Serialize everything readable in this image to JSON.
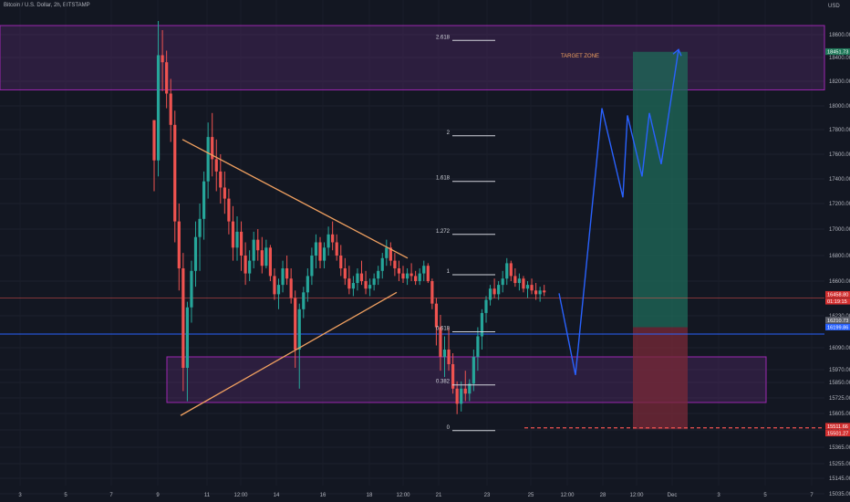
{
  "header": {
    "symbol_line": "Bitcoin / U.S. Dollar, 2h, BITSTAMP",
    "currency": "USD"
  },
  "chart_data": {
    "type": "candlestick",
    "y_axis": {
      "ticks": [
        18600,
        18400,
        18200,
        18000,
        17800,
        17600,
        17400,
        17200,
        17000,
        16800,
        16600,
        16230,
        16090,
        15970,
        15850,
        15725,
        15605,
        15485,
        15365,
        15255,
        15145,
        15035
      ],
      "tick_labels": [
        "18600.00",
        "18400.00",
        "18200.00",
        "18000.00",
        "17800.00",
        "17600.00",
        "17400.00",
        "17200.00",
        "17000.00",
        "16800.00",
        "16600.00",
        "16230.00",
        "16090.00",
        "15970.00",
        "15850.00",
        "15725.00",
        "15605.00",
        "15485.00",
        "15365.00",
        "15255.00",
        "15145.00",
        "15035.00"
      ]
    },
    "x_axis": {
      "ticks": [
        "3",
        "5",
        "7",
        "9",
        "11",
        "12:00",
        "14",
        "16",
        "18",
        "12:00",
        "21",
        "23",
        "25",
        "12:00",
        "28",
        "12:00",
        "Dec",
        "3",
        "5",
        "7"
      ]
    },
    "candles": [
      [
        17880,
        17880,
        17300,
        17550
      ],
      [
        17550,
        18720,
        17420,
        18420
      ],
      [
        18420,
        18640,
        18120,
        18360
      ],
      [
        18360,
        18460,
        17980,
        18100
      ],
      [
        18100,
        18220,
        17700,
        17840
      ],
      [
        17840,
        17960,
        16900,
        17060
      ],
      [
        17060,
        17200,
        16500,
        16700
      ],
      [
        16700,
        16820,
        15780,
        15980
      ],
      [
        15980,
        16380,
        15700,
        16320
      ],
      [
        16320,
        16760,
        16200,
        16680
      ],
      [
        16680,
        17060,
        16540,
        16940
      ],
      [
        16940,
        17200,
        16680,
        17080
      ],
      [
        17080,
        17460,
        16920,
        17380
      ],
      [
        17380,
        17860,
        17240,
        17740
      ],
      [
        17740,
        17940,
        17420,
        17560
      ],
      [
        17560,
        17720,
        17300,
        17460
      ],
      [
        17460,
        17600,
        17200,
        17330
      ],
      [
        17330,
        17460,
        17120,
        17240
      ],
      [
        17240,
        17320,
        16960,
        17060
      ],
      [
        17060,
        17180,
        16760,
        16860
      ],
      [
        16860,
        17100,
        16760,
        16980
      ],
      [
        16980,
        17060,
        16680,
        16800
      ],
      [
        16800,
        16900,
        16560,
        16660
      ],
      [
        16660,
        16840,
        16600,
        16760
      ],
      [
        16760,
        16980,
        16700,
        16920
      ],
      [
        16920,
        17000,
        16760,
        16840
      ],
      [
        16840,
        16940,
        16660,
        16720
      ],
      [
        16720,
        16920,
        16700,
        16860
      ],
      [
        16860,
        16880,
        16600,
        16640
      ],
      [
        16640,
        16700,
        16400,
        16460
      ],
      [
        16460,
        16620,
        16300,
        16560
      ],
      [
        16560,
        16760,
        16480,
        16700
      ],
      [
        16700,
        16800,
        16560,
        16620
      ],
      [
        16620,
        16700,
        16360,
        16420
      ],
      [
        16420,
        16500,
        15980,
        16080
      ],
      [
        16080,
        16360,
        15800,
        16300
      ],
      [
        16300,
        16540,
        16220,
        16480
      ],
      [
        16480,
        16700,
        16380,
        16640
      ],
      [
        16640,
        16860,
        16560,
        16800
      ],
      [
        16800,
        16960,
        16700,
        16900
      ],
      [
        16900,
        16940,
        16700,
        16760
      ],
      [
        16760,
        16900,
        16700,
        16860
      ],
      [
        16860,
        17020,
        16800,
        16960
      ],
      [
        16960,
        17060,
        16840,
        16900
      ],
      [
        16900,
        16960,
        16760,
        16800
      ],
      [
        16800,
        16880,
        16640,
        16700
      ],
      [
        16700,
        16780,
        16560,
        16620
      ],
      [
        16620,
        16720,
        16460,
        16520
      ],
      [
        16520,
        16640,
        16440,
        16580
      ],
      [
        16580,
        16700,
        16500,
        16660
      ],
      [
        16660,
        16760,
        16560,
        16600
      ],
      [
        16600,
        16680,
        16460,
        16520
      ],
      [
        16520,
        16620,
        16440,
        16560
      ],
      [
        16560,
        16660,
        16500,
        16620
      ],
      [
        16620,
        16720,
        16560,
        16680
      ],
      [
        16680,
        16820,
        16620,
        16780
      ],
      [
        16780,
        16920,
        16720,
        16860
      ],
      [
        16860,
        16900,
        16720,
        16760
      ],
      [
        16760,
        16820,
        16640,
        16700
      ],
      [
        16700,
        16760,
        16600,
        16660
      ],
      [
        16660,
        16720,
        16580,
        16620
      ],
      [
        16620,
        16700,
        16560,
        16660
      ],
      [
        16660,
        16740,
        16600,
        16640
      ],
      [
        16640,
        16680,
        16560,
        16600
      ],
      [
        16600,
        16700,
        16560,
        16660
      ],
      [
        16660,
        16760,
        16600,
        16720
      ],
      [
        16720,
        16740,
        16580,
        16600
      ],
      [
        16600,
        16620,
        16300,
        16360
      ],
      [
        16360,
        16420,
        16100,
        16180
      ],
      [
        16180,
        16240,
        15960,
        16040
      ],
      [
        16040,
        16140,
        15900,
        16080
      ],
      [
        16080,
        16180,
        15960,
        16000
      ],
      [
        16000,
        16060,
        15760,
        15800
      ],
      [
        15800,
        15860,
        15600,
        15680
      ],
      [
        15680,
        15860,
        15620,
        15800
      ],
      [
        15800,
        15960,
        15700,
        15760
      ],
      [
        15760,
        15880,
        15700,
        15840
      ],
      [
        15840,
        16080,
        15780,
        16040
      ],
      [
        16040,
        16180,
        15960,
        16140
      ],
      [
        16140,
        16300,
        16080,
        16260
      ],
      [
        16260,
        16440,
        16200,
        16400
      ],
      [
        16400,
        16560,
        16340,
        16520
      ],
      [
        16520,
        16620,
        16420,
        16460
      ],
      [
        16460,
        16600,
        16400,
        16560
      ],
      [
        16560,
        16680,
        16480,
        16620
      ],
      [
        16620,
        16780,
        16560,
        16740
      ],
      [
        16740,
        16760,
        16600,
        16640
      ],
      [
        16640,
        16700,
        16540,
        16580
      ],
      [
        16580,
        16660,
        16500,
        16620
      ],
      [
        16620,
        16640,
        16480,
        16520
      ],
      [
        16520,
        16600,
        16420,
        16560
      ],
      [
        16560,
        16620,
        16460,
        16500
      ],
      [
        16500,
        16580,
        16400,
        16460
      ],
      [
        16460,
        16540,
        16380,
        16500
      ],
      [
        16500,
        16560,
        16440,
        16480
      ]
    ],
    "fib_levels": [
      {
        "label": "2.618",
        "price": 18550
      },
      {
        "label": "2",
        "price": 17750
      },
      {
        "label": "1.618",
        "price": 17380
      },
      {
        "label": "1.272",
        "price": 16960
      },
      {
        "label": "1",
        "price": 16650
      },
      {
        "label": "0.618",
        "price": 16160
      },
      {
        "label": "0.382",
        "price": 15830
      },
      {
        "label": "0",
        "price": 15480
      }
    ],
    "zones": [
      {
        "role": "resistance",
        "top": 18680,
        "bottom": 18130
      },
      {
        "role": "support",
        "top": 16040,
        "bottom": 15690
      }
    ],
    "triangle": {
      "upper": [
        [
          17720,
          16780
        ]
      ],
      "lower": [
        [
          15590,
          16480
        ]
      ]
    },
    "projection_prices": [
      16470,
      15920,
      17980,
      17250,
      17920,
      17420,
      17940,
      17520,
      18470
    ],
    "position": {
      "entry": 16180,
      "target": 18450,
      "stop": 15490
    },
    "target_label": "TARGET ZONE",
    "horizontal_lines": {
      "current": 16420,
      "blue": 16150,
      "dashed_red": 15500
    },
    "price_tags": [
      {
        "text": "18451.73",
        "price": 18451.73,
        "kind": "green"
      },
      {
        "text": "16458.80",
        "price": 16458.8,
        "kind": "red"
      },
      {
        "text": "01:19:15",
        "price": 16400,
        "kind": "red"
      },
      {
        "text": "16210.73",
        "price": 16210.73,
        "kind": "grey"
      },
      {
        "text": "16199.86",
        "price": 16199.86,
        "kind": "blue"
      },
      {
        "text": "15511.66",
        "price": 15511.66,
        "kind": "red"
      },
      {
        "text": "15501.27",
        "price": 15501.27,
        "kind": "red"
      }
    ],
    "colors": {
      "background": "#131722",
      "bull": "#26a69a",
      "bear": "#ef5350",
      "zone_fill": "#5b2a73",
      "zone_border": "#9c27b0",
      "triangle": "#f0a060",
      "projection": "#2962ff",
      "profit_fill": "#1f6b5a",
      "loss_fill": "#7a2a38",
      "blue_line": "#2962ff",
      "target_label": "#f0a060"
    }
  }
}
